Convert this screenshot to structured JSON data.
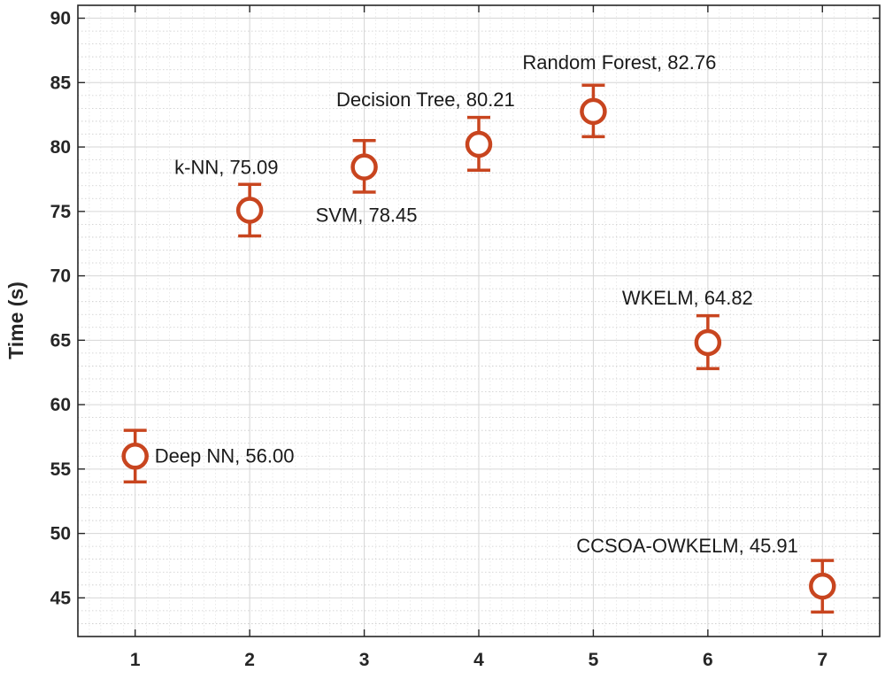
{
  "chart_data": {
    "type": "scatter",
    "title": "",
    "xlabel": "",
    "ylabel": "Time (s)",
    "xlim": [
      0.5,
      7.5
    ],
    "ylim": [
      42,
      91
    ],
    "xticks": [
      "1",
      "2",
      "3",
      "4",
      "5",
      "6",
      "7"
    ],
    "yticks": [
      "45",
      "50",
      "55",
      "60",
      "65",
      "70",
      "75",
      "80",
      "85",
      "90"
    ],
    "grid": true,
    "minor_grid": true,
    "marker_color": "#c8451f",
    "points": [
      {
        "x": 1,
        "y": 56.0,
        "err_low": 54.0,
        "err_high": 58.0,
        "label": "Deep NN, 56.00"
      },
      {
        "x": 2,
        "y": 75.09,
        "err_low": 73.1,
        "err_high": 77.1,
        "label": "k-NN, 75.09"
      },
      {
        "x": 3,
        "y": 78.45,
        "err_low": 76.5,
        "err_high": 80.5,
        "label": "SVM, 78.45"
      },
      {
        "x": 4,
        "y": 80.21,
        "err_low": 78.2,
        "err_high": 82.3,
        "label": "Decision Tree, 80.21"
      },
      {
        "x": 5,
        "y": 82.76,
        "err_low": 80.8,
        "err_high": 84.8,
        "label": "Random Forest, 82.76"
      },
      {
        "x": 6,
        "y": 64.82,
        "err_low": 62.8,
        "err_high": 66.9,
        "label": "WKELM, 64.82"
      },
      {
        "x": 7,
        "y": 45.91,
        "err_low": 43.9,
        "err_high": 47.9,
        "label": "CCSOA-OWKELM, 45.91"
      }
    ]
  }
}
